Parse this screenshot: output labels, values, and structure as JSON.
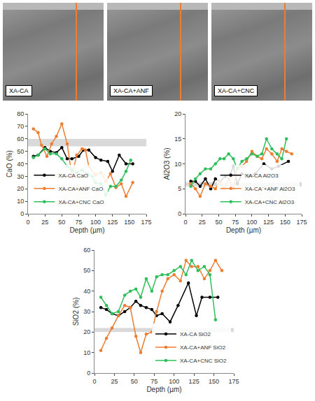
{
  "images": [
    {
      "label": "XA-CA"
    },
    {
      "label": "XA-CA+ANF"
    },
    {
      "label": "XA-CA+CNC"
    }
  ],
  "chart_data": [
    {
      "type": "line",
      "x_label": "Depth (µm)",
      "y_label": "CaO (%)",
      "xlim": [
        0,
        175
      ],
      "xticks": [
        0,
        25,
        50,
        75,
        100,
        125,
        150,
        175
      ],
      "ylim": [
        0,
        80
      ],
      "yticks": [
        0,
        10,
        20,
        30,
        40,
        50,
        60,
        70,
        80
      ],
      "band": [
        54,
        60
      ],
      "grid": false,
      "legend": "lower left",
      "marker": "circle",
      "series": [
        {
          "name": "XA-CA CaO",
          "color": "#000000",
          "x": [
            8,
            15,
            25,
            33,
            42,
            50,
            58,
            65,
            75,
            82,
            90,
            100,
            108,
            118,
            125,
            135,
            145,
            155
          ],
          "values": [
            46,
            47,
            53,
            50,
            49,
            53,
            44,
            44,
            46,
            51,
            51,
            45,
            43,
            42,
            34,
            47,
            40,
            40
          ]
        },
        {
          "name": "XA-CA+ANF CaO",
          "color": "#ED7D31",
          "x": [
            8,
            15,
            20,
            28,
            35,
            42,
            50,
            58,
            65,
            72,
            80,
            85,
            90,
            100,
            108,
            115,
            122,
            130,
            138,
            145,
            155
          ],
          "values": [
            68,
            65,
            55,
            46,
            56,
            62,
            72,
            56,
            30,
            47,
            52,
            51,
            38,
            31,
            33,
            26,
            32,
            21,
            24,
            14,
            25
          ]
        },
        {
          "name": "XA-CA+CNC CaO",
          "color": "#2EBF5B",
          "x": [
            8,
            15,
            25,
            33,
            42,
            50,
            58,
            65,
            72,
            80,
            88,
            95,
            100,
            108,
            115,
            122,
            130,
            138,
            145,
            152
          ],
          "values": [
            45,
            47,
            52,
            48,
            48,
            44,
            38,
            35,
            33,
            35,
            32,
            30,
            25,
            24,
            15,
            22,
            22,
            27,
            34,
            43
          ]
        }
      ]
    },
    {
      "type": "line",
      "x_label": "Depth (µm)",
      "y_label": "Al2O3 (%)",
      "xlim": [
        0,
        175
      ],
      "xticks": [
        0,
        25,
        50,
        75,
        100,
        125,
        150,
        175
      ],
      "ylim": [
        0,
        20
      ],
      "yticks": [
        0,
        5,
        10,
        15,
        20
      ],
      "band": [
        5.5,
        6.3
      ],
      "grid": false,
      "legend": "lower right",
      "marker": "circle",
      "series": [
        {
          "name": "XA-CA Al2O3",
          "color": "#000000",
          "x": [
            8,
            15,
            22,
            30,
            38,
            45,
            52,
            60,
            68,
            72,
            78,
            85,
            95,
            105,
            118,
            130,
            140,
            155
          ],
          "values": [
            6.5,
            6.5,
            5.5,
            7,
            5,
            7,
            6.5,
            7.5,
            8,
            9.5,
            6,
            8,
            7.5,
            8,
            10,
            9,
            9.5,
            10.5
          ]
        },
        {
          "name": "XA-CA`+ANF Al2O3",
          "color": "#ED7D31",
          "x": [
            8,
            15,
            22,
            30,
            38,
            45,
            52,
            58,
            65,
            72,
            78,
            85,
            92,
            100,
            108,
            115,
            122,
            130,
            138,
            145,
            152,
            160
          ],
          "values": [
            6,
            5,
            3.5,
            6,
            5.5,
            5,
            6.5,
            5,
            7,
            5,
            9,
            9.5,
            10.5,
            12.5,
            11.5,
            11,
            13,
            12,
            10.5,
            13,
            12.5,
            12
          ]
        },
        {
          "name": "XA-CA+CNC Al2O3",
          "color": "#2EBF5B",
          "x": [
            8,
            15,
            22,
            30,
            38,
            45,
            52,
            58,
            65,
            72,
            78,
            85,
            92,
            100,
            108,
            115,
            122,
            130,
            138,
            145,
            152
          ],
          "values": [
            5.5,
            7,
            8,
            9,
            9,
            10,
            11,
            11,
            12,
            11,
            9,
            10.5,
            11,
            12,
            11.5,
            12,
            15,
            13,
            12,
            11,
            15
          ]
        }
      ]
    },
    {
      "type": "line",
      "x_label": "Depth (µm)",
      "y_label": "SiO2 (%)",
      "xlim": [
        0,
        175
      ],
      "xticks": [
        0,
        25,
        50,
        75,
        100,
        125,
        150,
        175
      ],
      "ylim": [
        0,
        60
      ],
      "yticks": [
        0,
        10,
        20,
        30,
        40,
        50,
        60
      ],
      "band": [
        20,
        22
      ],
      "grid": false,
      "legend": "lower right",
      "marker": "circle",
      "series": [
        {
          "name": "XA-CA SiO2",
          "color": "#000000",
          "x": [
            8,
            15,
            22,
            30,
            38,
            45,
            52,
            58,
            65,
            72,
            78,
            85,
            95,
            105,
            118,
            128,
            135,
            145,
            155
          ],
          "values": [
            32,
            31,
            29,
            28,
            30,
            32,
            35,
            33,
            32,
            31,
            28,
            29,
            25,
            33,
            44,
            28,
            37,
            37,
            37
          ]
        },
        {
          "name": "XA-CA+ANF SiO2",
          "color": "#ED7D31",
          "x": [
            8,
            15,
            22,
            30,
            38,
            45,
            52,
            58,
            65,
            72,
            78,
            85,
            92,
            100,
            108,
            115,
            122,
            130,
            138,
            145,
            152,
            160
          ],
          "values": [
            11,
            17,
            22,
            28,
            33,
            32,
            18,
            10,
            19,
            20,
            30,
            40,
            46,
            48,
            45,
            55,
            52,
            52,
            46,
            50,
            55,
            50
          ]
        },
        {
          "name": "XA-CA+CNC SiO2",
          "color": "#2EBF5B",
          "x": [
            8,
            15,
            22,
            30,
            38,
            45,
            52,
            58,
            65,
            72,
            78,
            85,
            92,
            100,
            108,
            115,
            122,
            130,
            138,
            145,
            152
          ],
          "values": [
            37,
            33,
            29,
            30,
            38,
            40,
            41,
            37,
            46,
            40,
            47,
            48,
            48,
            50,
            52,
            48,
            55,
            50,
            52,
            48,
            26
          ]
        }
      ]
    }
  ]
}
